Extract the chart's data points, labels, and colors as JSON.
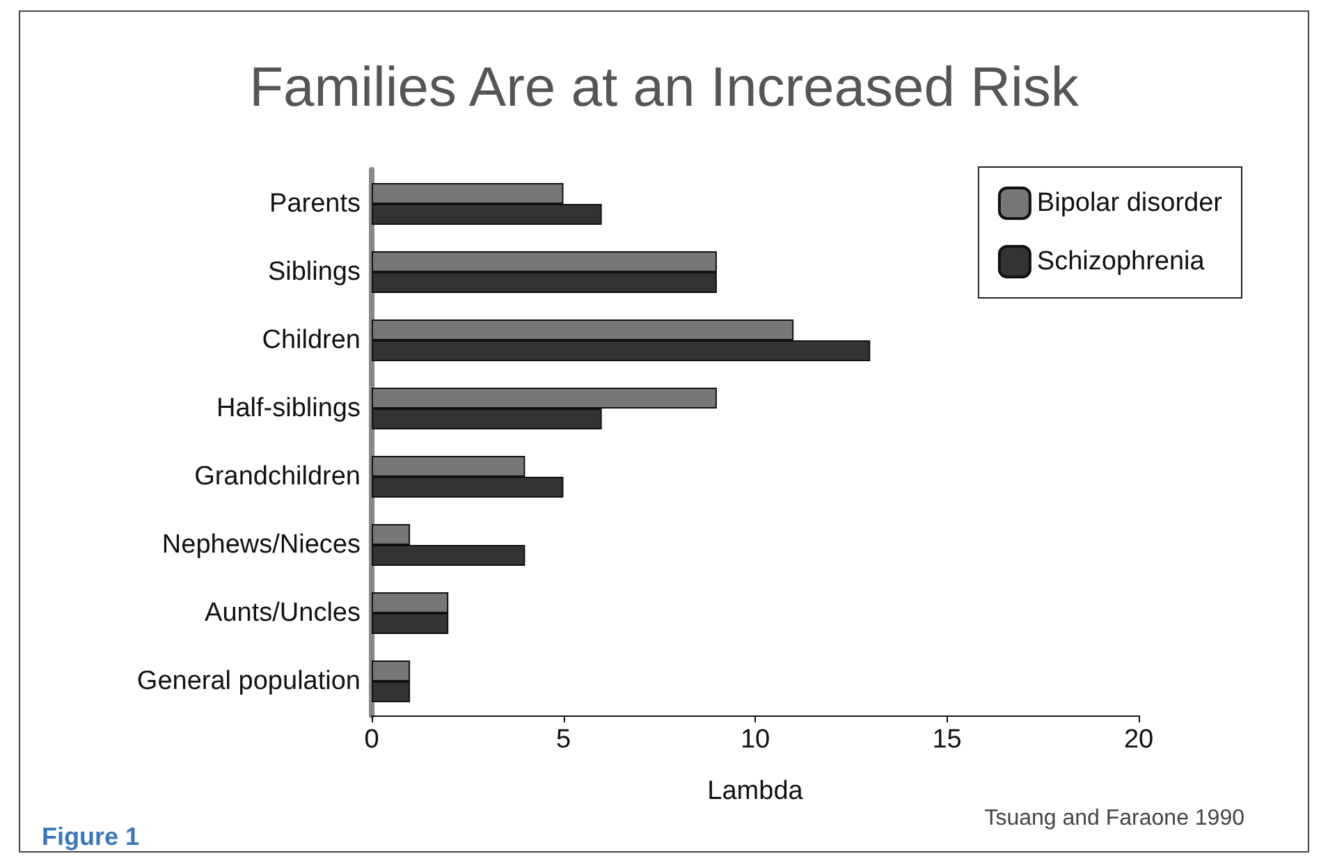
{
  "chart_data": {
    "type": "bar",
    "orientation": "horizontal",
    "title": "Families Are at an Increased Risk",
    "xlabel": "Lambda",
    "categories": [
      "Parents",
      "Siblings",
      "Children",
      "Half-siblings",
      "Grandchildren",
      "Nephews/Nieces",
      "Aunts/Uncles",
      "General population"
    ],
    "series": [
      {
        "name": "Bipolar disorder",
        "color": "#777777",
        "values": [
          5,
          9,
          11,
          9,
          4,
          1,
          2,
          1
        ]
      },
      {
        "name": "Schizophrenia",
        "color": "#333333",
        "values": [
          6,
          9,
          13,
          6,
          5,
          4,
          2,
          1
        ]
      }
    ],
    "xlim": [
      0,
      20
    ],
    "xticks": [
      0,
      5,
      10,
      15,
      20
    ],
    "grid": false,
    "legend": "top right",
    "annotations": [
      "Tsuang and Faraone 1990",
      "Figure 1"
    ]
  }
}
